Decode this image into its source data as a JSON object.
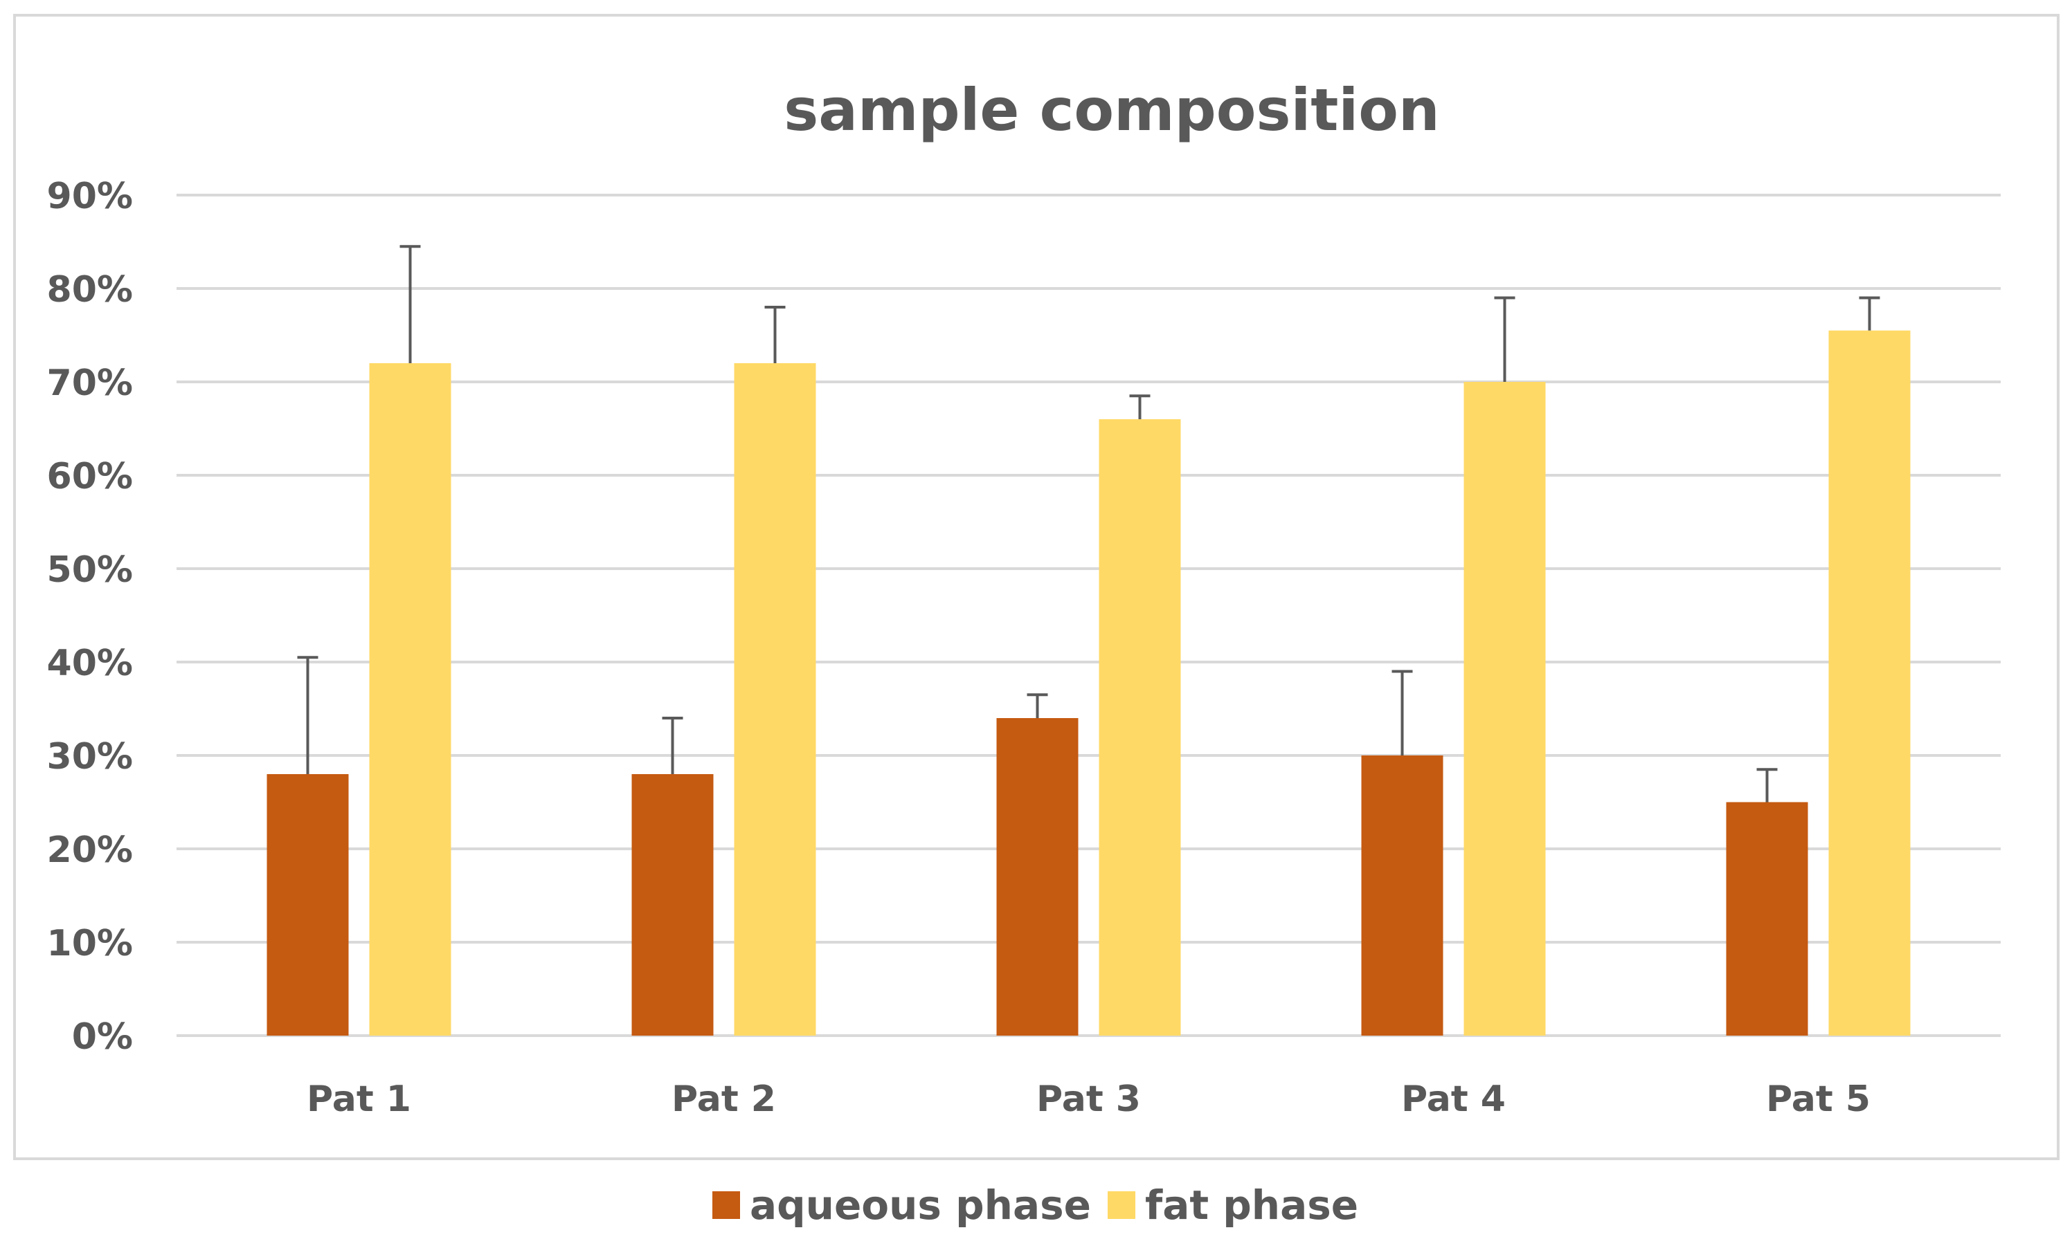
{
  "chart_data": {
    "type": "bar",
    "title": "sample composition",
    "categories": [
      "Pat 1",
      "Pat 2",
      "Pat 3",
      "Pat 4",
      "Pat 5"
    ],
    "series": [
      {
        "name": "aqueous phase",
        "color": "#c55a11",
        "values": [
          0.28,
          0.28,
          0.34,
          0.3,
          0.25
        ],
        "error_plus": [
          0.125,
          0.06,
          0.025,
          0.09,
          0.035
        ]
      },
      {
        "name": "fat phase",
        "color": "#ffd966",
        "values": [
          0.72,
          0.72,
          0.66,
          0.7,
          0.755
        ],
        "error_plus": [
          0.125,
          0.06,
          0.025,
          0.09,
          0.035
        ]
      }
    ],
    "ylim": [
      0,
      0.9
    ],
    "yticks": [
      0,
      0.1,
      0.2,
      0.3,
      0.4,
      0.5,
      0.6,
      0.7,
      0.8,
      0.9
    ],
    "ytick_labels": [
      "0%",
      "10%",
      "20%",
      "30%",
      "40%",
      "50%",
      "60%",
      "70%",
      "80%",
      "90%"
    ],
    "xlabel": "",
    "ylabel": "",
    "grid": true,
    "legend_position": "bottom"
  }
}
